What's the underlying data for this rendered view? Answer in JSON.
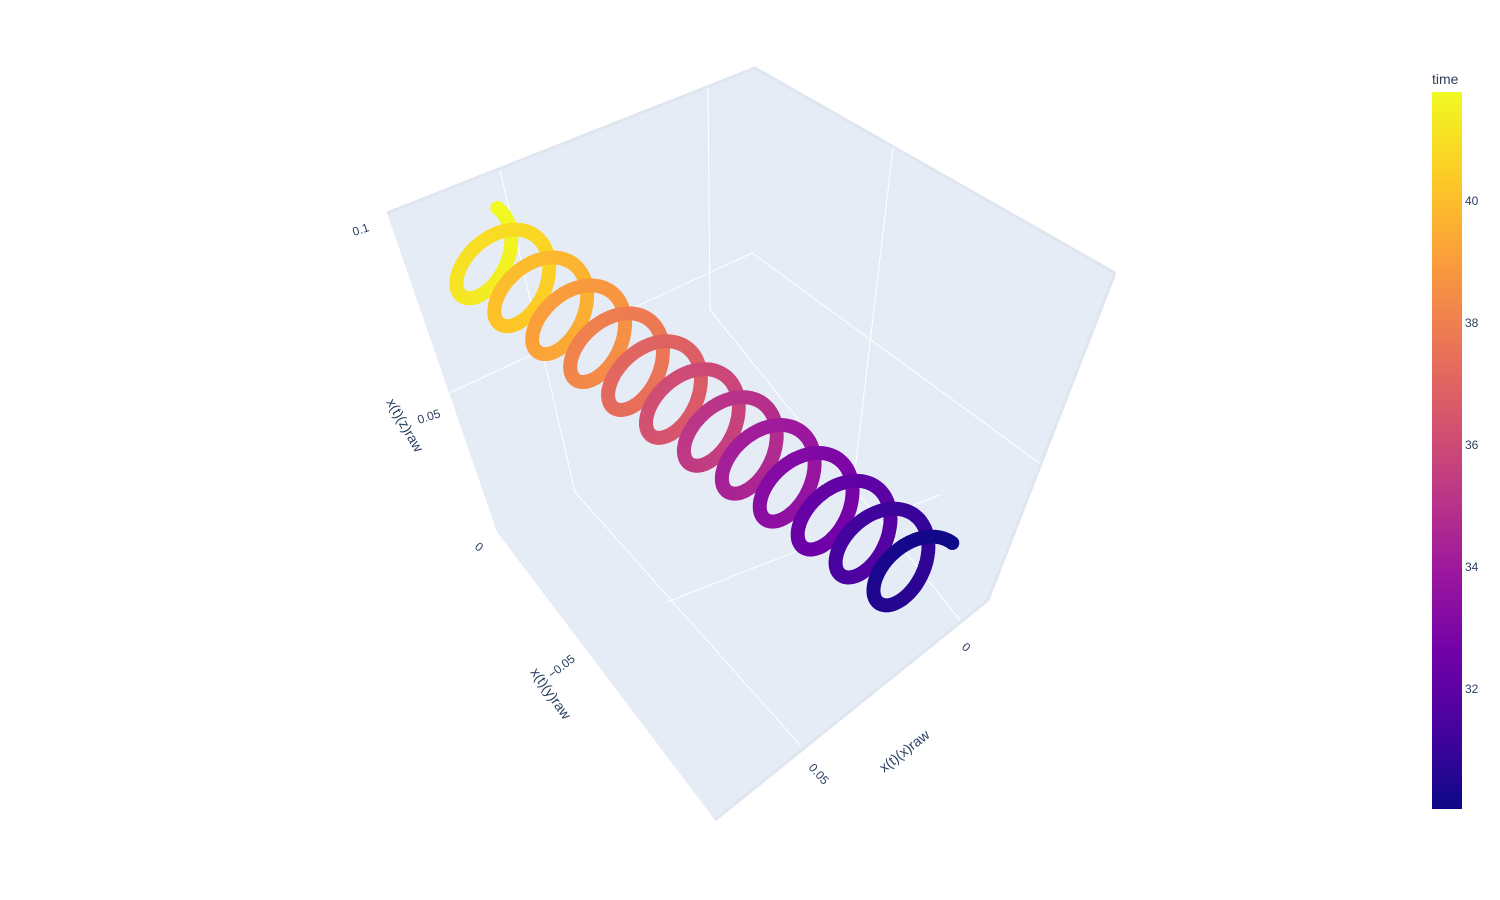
{
  "chart_data": {
    "type": "scatter3d",
    "axes": {
      "x": {
        "title": "x(t)(x)raw",
        "tick_labels": [
          "0",
          "0.05"
        ]
      },
      "y": {
        "title": "x(t)(y)raw",
        "tick_labels": [
          "−0.05"
        ]
      },
      "z": {
        "title": "x(t)(z)raw",
        "tick_labels": [
          "0",
          "0.05",
          "0.1"
        ]
      }
    },
    "colorbar": {
      "title": "time",
      "tick_labels": [
        "32",
        "34",
        "36",
        "38",
        "40"
      ],
      "range": [
        30,
        42
      ],
      "colorscale": [
        "#0d0887",
        "#46039f",
        "#7201a8",
        "#9c179e",
        "#bd3786",
        "#d8576b",
        "#ed7953",
        "#fb9f3a",
        "#fdca26",
        "#f0f921"
      ]
    },
    "series": {
      "marker": "circle",
      "helix_turns": 12,
      "time_range": [
        30,
        42
      ]
    }
  }
}
